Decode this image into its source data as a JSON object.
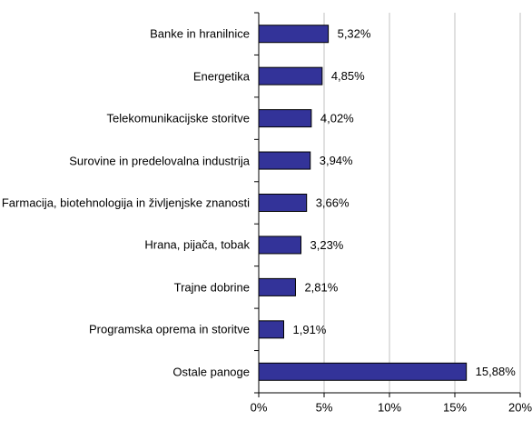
{
  "chart_data": {
    "type": "bar",
    "orientation": "horizontal",
    "categories": [
      "Banke in hranilnice",
      "Energetika",
      "Telekomunikacijske storitve",
      "Surovine in predelovalna industrija",
      "Farmacija, biotehnologija in življenjske znanosti",
      "Hrana, pijača, tobak",
      "Trajne dobrine",
      "Programska oprema in storitve",
      "Ostale panoge"
    ],
    "values": [
      5.32,
      4.85,
      4.02,
      3.94,
      3.66,
      3.23,
      2.81,
      1.91,
      15.88
    ],
    "value_labels": [
      "5,32%",
      "4,85%",
      "4,02%",
      "3,94%",
      "3,66%",
      "3,23%",
      "2,81%",
      "1,91%",
      "15,88%"
    ],
    "color": "#333399",
    "xlim": [
      0,
      20
    ],
    "xticks": [
      {
        "value": 0,
        "label": "0%"
      },
      {
        "value": 5,
        "label": "5%"
      },
      {
        "value": 10,
        "label": "10%"
      },
      {
        "value": 15,
        "label": "15%"
      },
      {
        "value": 20,
        "label": "20%"
      }
    ],
    "grid": true
  }
}
